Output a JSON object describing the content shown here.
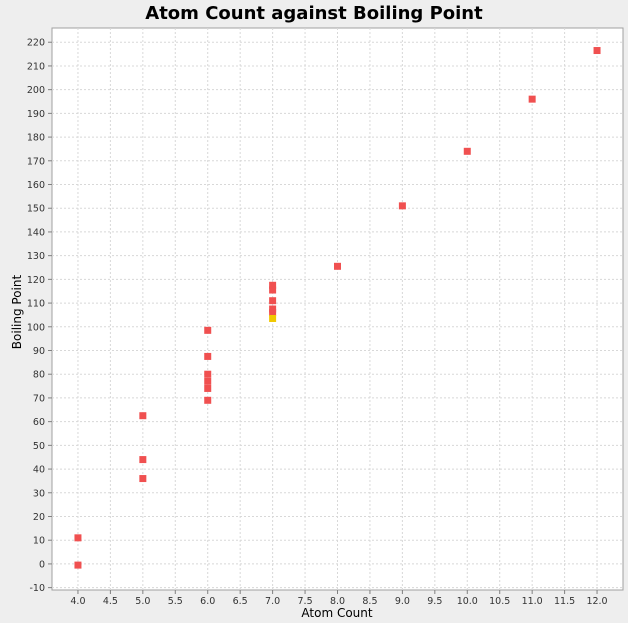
{
  "chart_data": {
    "type": "scatter",
    "title": "Atom Count against Boiling Point",
    "xlabel": "Atom Count",
    "ylabel": "Boiling Point",
    "xlim": [
      3.6,
      12.4
    ],
    "ylim": [
      -11,
      226
    ],
    "xticks": [
      4.0,
      4.5,
      5.0,
      5.5,
      6.0,
      6.5,
      7.0,
      7.5,
      8.0,
      8.5,
      9.0,
      9.5,
      10.0,
      10.5,
      11.0,
      11.5,
      12.0
    ],
    "xtick_labels": [
      "4.0",
      "4.5",
      "5.0",
      "5.5",
      "6.0",
      "6.5",
      "7.0",
      "7.5",
      "8.0",
      "8.5",
      "9.0",
      "9.5",
      "10.0",
      "10.5",
      "11.0",
      "11.5",
      "12.0"
    ],
    "yticks": [
      -10,
      0,
      10,
      20,
      30,
      40,
      50,
      60,
      70,
      80,
      90,
      100,
      110,
      120,
      130,
      140,
      150,
      160,
      170,
      180,
      190,
      200,
      210,
      220
    ],
    "ytick_labels": [
      "-10",
      "0",
      "10",
      "20",
      "30",
      "40",
      "50",
      "60",
      "70",
      "80",
      "90",
      "100",
      "110",
      "120",
      "130",
      "140",
      "150",
      "160",
      "170",
      "180",
      "190",
      "200",
      "210",
      "220"
    ],
    "grid": true,
    "legend": "none",
    "series": [
      {
        "color": "#f05050",
        "points": [
          {
            "x": 4,
            "y": -0.5
          },
          {
            "x": 4,
            "y": 11
          },
          {
            "x": 5,
            "y": 36
          },
          {
            "x": 5,
            "y": 44
          },
          {
            "x": 5,
            "y": 62.5
          },
          {
            "x": 6,
            "y": 69
          },
          {
            "x": 6,
            "y": 74
          },
          {
            "x": 6,
            "y": 77
          },
          {
            "x": 6,
            "y": 80
          },
          {
            "x": 6,
            "y": 87.5
          },
          {
            "x": 6,
            "y": 98.5
          },
          {
            "x": 7,
            "y": 106
          },
          {
            "x": 7,
            "y": 107.5
          },
          {
            "x": 7,
            "y": 111
          },
          {
            "x": 7,
            "y": 115.5
          },
          {
            "x": 7,
            "y": 117.5
          },
          {
            "x": 8,
            "y": 125.5
          },
          {
            "x": 9,
            "y": 151
          },
          {
            "x": 10,
            "y": 174
          },
          {
            "x": 11,
            "y": 196
          },
          {
            "x": 12,
            "y": 216.5
          }
        ]
      },
      {
        "color": "#f0c800",
        "points": [
          {
            "x": 7,
            "y": 103.5
          }
        ]
      }
    ]
  }
}
